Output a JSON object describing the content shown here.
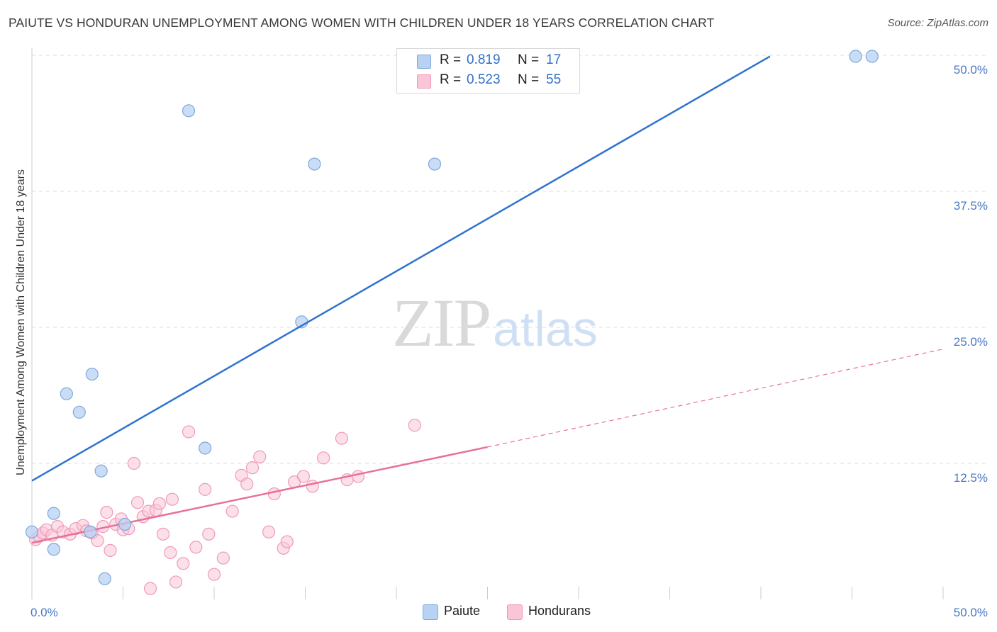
{
  "title": "PAIUTE VS HONDURAN UNEMPLOYMENT AMONG WOMEN WITH CHILDREN UNDER 18 YEARS CORRELATION CHART",
  "source": "Source: ZipAtlas.com",
  "watermark": {
    "zip": "ZIP",
    "atlas": "atlas"
  },
  "legend": {
    "paiute": {
      "r_label": "R =",
      "r_value": "0.819",
      "n_label": "N =",
      "n_value": "17"
    },
    "hondurans": {
      "r_label": "R =",
      "r_value": "0.523",
      "n_label": "N =",
      "n_value": "55"
    }
  },
  "bottom_legend": {
    "paiute": "Paiute",
    "hondurans": "Hondurans"
  },
  "colors": {
    "paiute_fill": "#b8d2f3",
    "paiute_stroke": "#7fa8dc",
    "paiute_line": "#2f73d0",
    "hondurans_fill": "#f9c6d7",
    "hondurans_stroke": "#ef9ab8",
    "hondurans_line": "#e8709a",
    "grid": "#dddddd",
    "tick_text": "#4a78c4"
  },
  "chart_data": {
    "type": "scatter",
    "title": "PAIUTE VS HONDURAN UNEMPLOYMENT AMONG WOMEN WITH CHILDREN UNDER 18 YEARS CORRELATION CHART",
    "xlabel": "",
    "ylabel": "Unemployment Among Women with Children Under 18 years",
    "xlim": [
      0,
      50
    ],
    "ylim": [
      0,
      50
    ],
    "x_tick_labels": [
      "0.0%",
      "50.0%"
    ],
    "y_ticks": [
      12.5,
      25.0,
      37.5,
      50.0
    ],
    "y_tick_labels": [
      "12.5%",
      "25.0%",
      "37.5%",
      "50.0%"
    ],
    "grid": true,
    "series": [
      {
        "name": "Paiute",
        "r": 0.819,
        "n": 17,
        "points": [
          [
            0.0,
            6.2
          ],
          [
            1.2,
            7.9
          ],
          [
            1.2,
            4.6
          ],
          [
            1.9,
            18.9
          ],
          [
            2.6,
            17.2
          ],
          [
            3.2,
            6.2
          ],
          [
            3.3,
            20.7
          ],
          [
            3.8,
            11.8
          ],
          [
            4.0,
            1.9
          ],
          [
            5.1,
            6.9
          ],
          [
            8.6,
            44.9
          ],
          [
            9.5,
            13.9
          ],
          [
            14.8,
            25.5
          ],
          [
            15.5,
            40.0
          ],
          [
            22.1,
            40.0
          ],
          [
            45.2,
            49.9
          ],
          [
            46.1,
            49.9
          ]
        ],
        "trend": {
          "x": [
            0.0,
            40.5
          ],
          "y": [
            10.9,
            49.9
          ],
          "dashed_extension": false
        }
      },
      {
        "name": "Hondurans",
        "r": 0.523,
        "n": 55,
        "points": [
          [
            0.2,
            5.5
          ],
          [
            0.4,
            5.8
          ],
          [
            0.6,
            6.1
          ],
          [
            0.8,
            6.4
          ],
          [
            1.1,
            5.9
          ],
          [
            1.4,
            6.7
          ],
          [
            1.7,
            6.2
          ],
          [
            2.1,
            6.0
          ],
          [
            2.4,
            6.5
          ],
          [
            2.8,
            6.8
          ],
          [
            3.0,
            6.3
          ],
          [
            3.3,
            6.1
          ],
          [
            3.6,
            5.4
          ],
          [
            3.9,
            6.7
          ],
          [
            4.1,
            8.0
          ],
          [
            4.3,
            4.5
          ],
          [
            4.6,
            6.9
          ],
          [
            4.9,
            7.4
          ],
          [
            5.0,
            6.4
          ],
          [
            5.3,
            6.5
          ],
          [
            5.6,
            12.5
          ],
          [
            5.8,
            8.9
          ],
          [
            6.1,
            7.6
          ],
          [
            6.4,
            8.1
          ],
          [
            6.5,
            1.0
          ],
          [
            6.8,
            8.2
          ],
          [
            7.0,
            8.8
          ],
          [
            7.2,
            6.0
          ],
          [
            7.6,
            4.3
          ],
          [
            7.7,
            9.2
          ],
          [
            7.9,
            1.6
          ],
          [
            8.3,
            3.3
          ],
          [
            8.6,
            15.4
          ],
          [
            9.0,
            4.8
          ],
          [
            9.5,
            10.1
          ],
          [
            9.7,
            6.0
          ],
          [
            10.0,
            2.3
          ],
          [
            10.5,
            3.8
          ],
          [
            11.0,
            8.1
          ],
          [
            11.5,
            11.4
          ],
          [
            11.8,
            10.6
          ],
          [
            12.1,
            12.1
          ],
          [
            12.5,
            13.1
          ],
          [
            13.0,
            6.2
          ],
          [
            13.3,
            9.7
          ],
          [
            13.8,
            4.7
          ],
          [
            14.0,
            5.3
          ],
          [
            14.4,
            10.8
          ],
          [
            14.9,
            11.3
          ],
          [
            15.4,
            10.4
          ],
          [
            16.0,
            13.0
          ],
          [
            17.0,
            14.8
          ],
          [
            17.3,
            11.0
          ],
          [
            17.9,
            11.3
          ],
          [
            21.0,
            16.0
          ]
        ],
        "trend": {
          "x": [
            0.0,
            25.0
          ],
          "y": [
            5.2,
            14.0
          ],
          "dashed_extension_to": [
            50.0,
            23.0
          ]
        }
      }
    ]
  }
}
